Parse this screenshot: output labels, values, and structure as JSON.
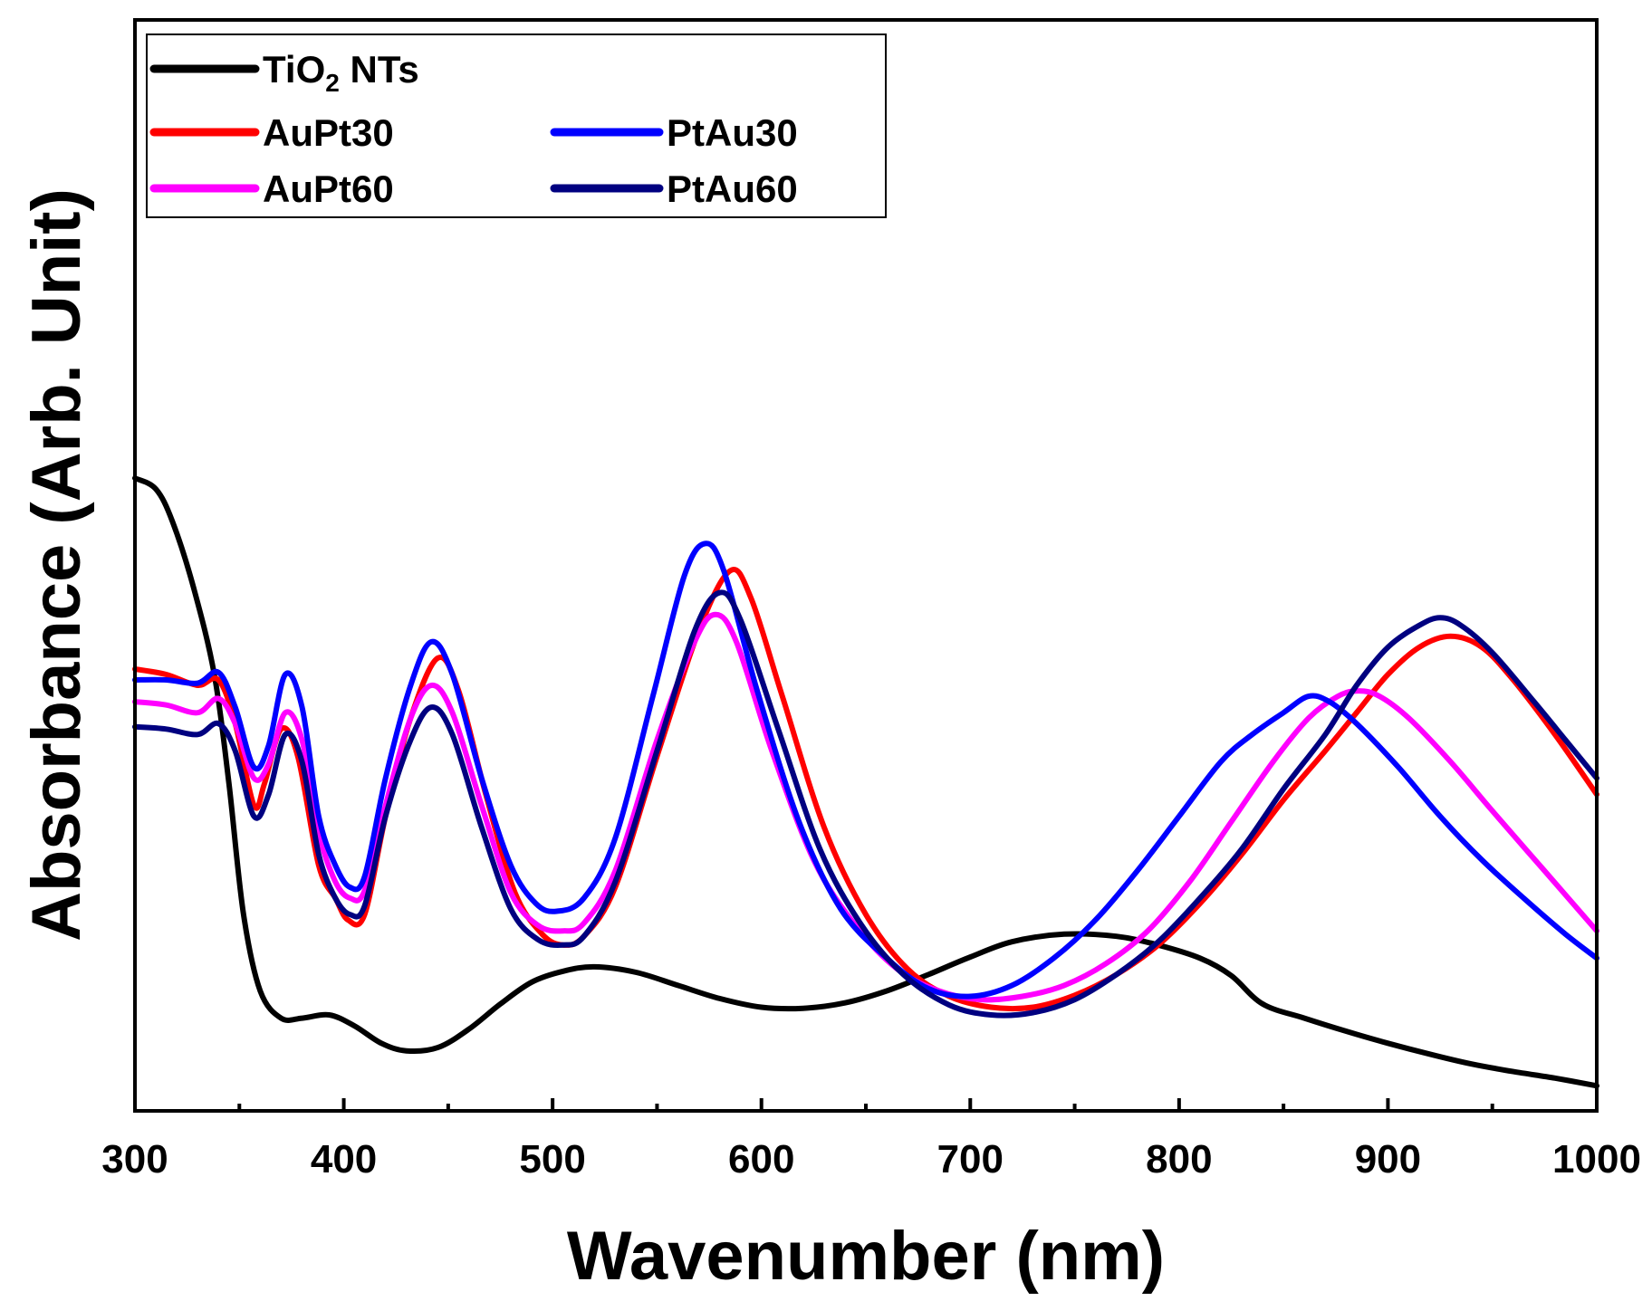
{
  "chart_data": {
    "type": "line",
    "title": "",
    "xlabel": "Wavenumber (nm)",
    "ylabel": "Absorbance (Arb. Unit)",
    "xlim": [
      300,
      1000
    ],
    "ylim": [
      0,
      1
    ],
    "xticks": [
      300,
      400,
      500,
      600,
      700,
      800,
      900,
      1000
    ],
    "x_minor_step": 50,
    "yticks_labeled": false,
    "grid": false,
    "legend_position": "top-left",
    "series": [
      {
        "name": "TiO2 NTs",
        "name_base": "TiO",
        "name_sub": "2",
        "name_rest": " NTs",
        "color": "#000000",
        "points": [
          [
            300,
            0.58
          ],
          [
            310,
            0.57
          ],
          [
            318,
            0.54
          ],
          [
            328,
            0.48
          ],
          [
            338,
            0.4
          ],
          [
            345,
            0.3
          ],
          [
            352,
            0.18
          ],
          [
            360,
            0.11
          ],
          [
            370,
            0.085
          ],
          [
            380,
            0.085
          ],
          [
            393,
            0.088
          ],
          [
            405,
            0.078
          ],
          [
            418,
            0.062
          ],
          [
            430,
            0.055
          ],
          [
            445,
            0.058
          ],
          [
            460,
            0.075
          ],
          [
            475,
            0.098
          ],
          [
            490,
            0.118
          ],
          [
            505,
            0.128
          ],
          [
            520,
            0.132
          ],
          [
            540,
            0.127
          ],
          [
            560,
            0.115
          ],
          [
            580,
            0.103
          ],
          [
            600,
            0.095
          ],
          [
            620,
            0.094
          ],
          [
            640,
            0.099
          ],
          [
            660,
            0.11
          ],
          [
            680,
            0.125
          ],
          [
            700,
            0.141
          ],
          [
            720,
            0.155
          ],
          [
            745,
            0.162
          ],
          [
            770,
            0.16
          ],
          [
            790,
            0.152
          ],
          [
            810,
            0.14
          ],
          [
            825,
            0.124
          ],
          [
            840,
            0.098
          ],
          [
            860,
            0.085
          ],
          [
            880,
            0.073
          ],
          [
            900,
            0.062
          ],
          [
            920,
            0.052
          ],
          [
            940,
            0.043
          ],
          [
            960,
            0.036
          ],
          [
            980,
            0.03
          ],
          [
            1000,
            0.023
          ]
        ]
      },
      {
        "name": "AuPt30",
        "color": "#ff0000",
        "points": [
          [
            300,
            0.405
          ],
          [
            315,
            0.4
          ],
          [
            330,
            0.39
          ],
          [
            340,
            0.395
          ],
          [
            348,
            0.355
          ],
          [
            357,
            0.28
          ],
          [
            362,
            0.3
          ],
          [
            370,
            0.35
          ],
          [
            378,
            0.325
          ],
          [
            388,
            0.225
          ],
          [
            396,
            0.195
          ],
          [
            402,
            0.175
          ],
          [
            410,
            0.18
          ],
          [
            420,
            0.27
          ],
          [
            432,
            0.36
          ],
          [
            445,
            0.415
          ],
          [
            455,
            0.385
          ],
          [
            468,
            0.29
          ],
          [
            482,
            0.2
          ],
          [
            495,
            0.162
          ],
          [
            505,
            0.152
          ],
          [
            515,
            0.16
          ],
          [
            530,
            0.205
          ],
          [
            550,
            0.325
          ],
          [
            570,
            0.44
          ],
          [
            585,
            0.495
          ],
          [
            595,
            0.47
          ],
          [
            610,
            0.38
          ],
          [
            630,
            0.26
          ],
          [
            650,
            0.18
          ],
          [
            670,
            0.13
          ],
          [
            690,
            0.105
          ],
          [
            710,
            0.095
          ],
          [
            730,
            0.095
          ],
          [
            750,
            0.106
          ],
          [
            770,
            0.125
          ],
          [
            790,
            0.152
          ],
          [
            810,
            0.19
          ],
          [
            830,
            0.235
          ],
          [
            850,
            0.285
          ],
          [
            870,
            0.33
          ],
          [
            885,
            0.365
          ],
          [
            900,
            0.4
          ],
          [
            915,
            0.425
          ],
          [
            930,
            0.435
          ],
          [
            945,
            0.425
          ],
          [
            960,
            0.395
          ],
          [
            980,
            0.345
          ],
          [
            1000,
            0.29
          ]
        ]
      },
      {
        "name": "AuPt60",
        "color": "#ff00ff",
        "points": [
          [
            300,
            0.375
          ],
          [
            315,
            0.372
          ],
          [
            330,
            0.365
          ],
          [
            340,
            0.378
          ],
          [
            348,
            0.355
          ],
          [
            357,
            0.305
          ],
          [
            364,
            0.318
          ],
          [
            372,
            0.365
          ],
          [
            380,
            0.34
          ],
          [
            388,
            0.255
          ],
          [
            396,
            0.21
          ],
          [
            403,
            0.195
          ],
          [
            410,
            0.202
          ],
          [
            420,
            0.28
          ],
          [
            432,
            0.36
          ],
          [
            442,
            0.39
          ],
          [
            452,
            0.365
          ],
          [
            466,
            0.28
          ],
          [
            480,
            0.2
          ],
          [
            493,
            0.17
          ],
          [
            505,
            0.165
          ],
          [
            515,
            0.172
          ],
          [
            530,
            0.22
          ],
          [
            550,
            0.34
          ],
          [
            568,
            0.43
          ],
          [
            578,
            0.455
          ],
          [
            588,
            0.43
          ],
          [
            605,
            0.33
          ],
          [
            625,
            0.23
          ],
          [
            645,
            0.17
          ],
          [
            665,
            0.13
          ],
          [
            685,
            0.11
          ],
          [
            705,
            0.102
          ],
          [
            725,
            0.105
          ],
          [
            745,
            0.115
          ],
          [
            765,
            0.135
          ],
          [
            785,
            0.165
          ],
          [
            805,
            0.21
          ],
          [
            825,
            0.265
          ],
          [
            845,
            0.32
          ],
          [
            862,
            0.36
          ],
          [
            876,
            0.38
          ],
          [
            886,
            0.385
          ],
          [
            896,
            0.38
          ],
          [
            910,
            0.36
          ],
          [
            930,
            0.32
          ],
          [
            950,
            0.275
          ],
          [
            975,
            0.22
          ],
          [
            1000,
            0.165
          ]
        ]
      },
      {
        "name": "PtAu30",
        "color": "#0000ff",
        "points": [
          [
            300,
            0.395
          ],
          [
            315,
            0.395
          ],
          [
            330,
            0.392
          ],
          [
            340,
            0.402
          ],
          [
            348,
            0.37
          ],
          [
            357,
            0.315
          ],
          [
            364,
            0.335
          ],
          [
            372,
            0.4
          ],
          [
            380,
            0.37
          ],
          [
            388,
            0.27
          ],
          [
            396,
            0.225
          ],
          [
            403,
            0.205
          ],
          [
            410,
            0.215
          ],
          [
            420,
            0.305
          ],
          [
            432,
            0.39
          ],
          [
            442,
            0.43
          ],
          [
            452,
            0.4
          ],
          [
            466,
            0.305
          ],
          [
            480,
            0.225
          ],
          [
            492,
            0.19
          ],
          [
            502,
            0.183
          ],
          [
            515,
            0.195
          ],
          [
            530,
            0.25
          ],
          [
            548,
            0.38
          ],
          [
            563,
            0.49
          ],
          [
            573,
            0.52
          ],
          [
            582,
            0.495
          ],
          [
            598,
            0.385
          ],
          [
            618,
            0.265
          ],
          [
            638,
            0.185
          ],
          [
            660,
            0.14
          ],
          [
            680,
            0.112
          ],
          [
            700,
            0.105
          ],
          [
            720,
            0.115
          ],
          [
            740,
            0.14
          ],
          [
            760,
            0.175
          ],
          [
            780,
            0.22
          ],
          [
            800,
            0.27
          ],
          [
            820,
            0.32
          ],
          [
            835,
            0.345
          ],
          [
            850,
            0.365
          ],
          [
            862,
            0.38
          ],
          [
            872,
            0.375
          ],
          [
            885,
            0.355
          ],
          [
            905,
            0.315
          ],
          [
            925,
            0.27
          ],
          [
            945,
            0.23
          ],
          [
            965,
            0.195
          ],
          [
            985,
            0.162
          ],
          [
            1000,
            0.14
          ]
        ]
      },
      {
        "name": "PtAu60",
        "color": "#000080",
        "points": [
          [
            300,
            0.352
          ],
          [
            315,
            0.35
          ],
          [
            330,
            0.345
          ],
          [
            340,
            0.355
          ],
          [
            348,
            0.33
          ],
          [
            357,
            0.27
          ],
          [
            364,
            0.29
          ],
          [
            372,
            0.345
          ],
          [
            380,
            0.32
          ],
          [
            388,
            0.235
          ],
          [
            396,
            0.195
          ],
          [
            403,
            0.18
          ],
          [
            410,
            0.188
          ],
          [
            420,
            0.27
          ],
          [
            432,
            0.34
          ],
          [
            442,
            0.37
          ],
          [
            452,
            0.345
          ],
          [
            466,
            0.26
          ],
          [
            480,
            0.185
          ],
          [
            493,
            0.157
          ],
          [
            505,
            0.152
          ],
          [
            515,
            0.16
          ],
          [
            530,
            0.21
          ],
          [
            550,
            0.33
          ],
          [
            568,
            0.44
          ],
          [
            580,
            0.475
          ],
          [
            590,
            0.45
          ],
          [
            608,
            0.35
          ],
          [
            628,
            0.24
          ],
          [
            648,
            0.17
          ],
          [
            668,
            0.125
          ],
          [
            690,
            0.097
          ],
          [
            710,
            0.088
          ],
          [
            730,
            0.09
          ],
          [
            750,
            0.102
          ],
          [
            770,
            0.125
          ],
          [
            790,
            0.155
          ],
          [
            810,
            0.195
          ],
          [
            830,
            0.24
          ],
          [
            850,
            0.295
          ],
          [
            870,
            0.345
          ],
          [
            885,
            0.39
          ],
          [
            900,
            0.425
          ],
          [
            915,
            0.445
          ],
          [
            925,
            0.452
          ],
          [
            935,
            0.445
          ],
          [
            950,
            0.42
          ],
          [
            970,
            0.375
          ],
          [
            985,
            0.34
          ],
          [
            1000,
            0.305
          ]
        ]
      }
    ],
    "legend_layout": [
      [
        "TiO2 NTs"
      ],
      [
        "AuPt30",
        "PtAu30"
      ],
      [
        "AuPt60",
        "PtAu60"
      ]
    ]
  }
}
